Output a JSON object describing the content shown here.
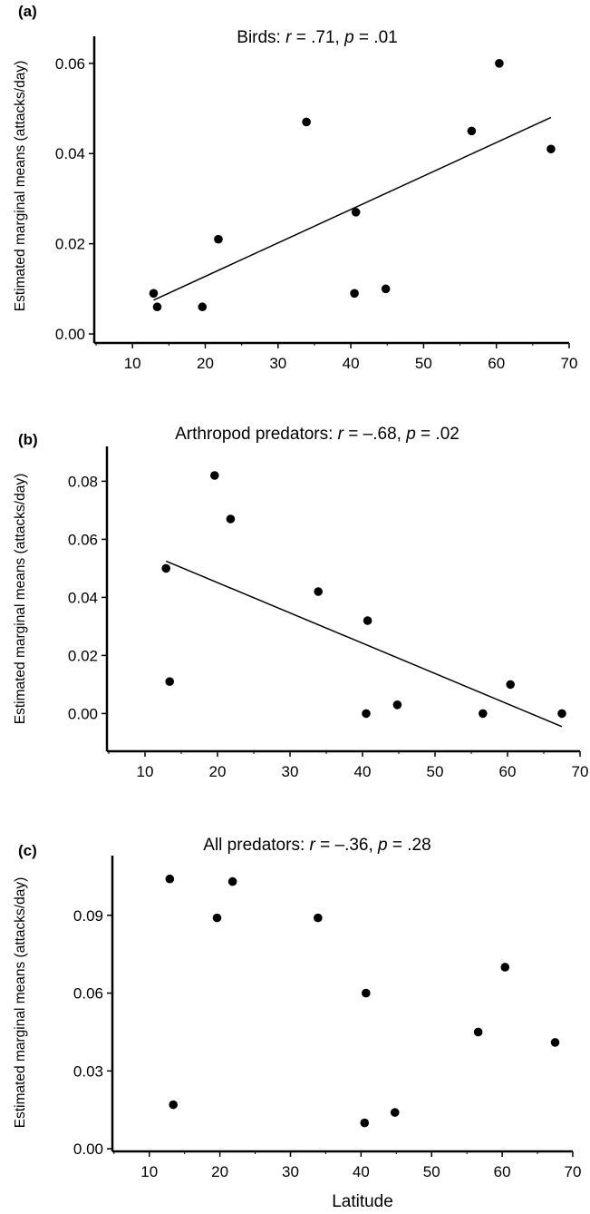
{
  "chart_data": [
    {
      "type": "scatter",
      "panel": "(a)",
      "title_prefix": "Birds: ",
      "stat_r": "r",
      "stat_r_value": " = .71, ",
      "stat_p": "p",
      "stat_p_value": " = .01",
      "ylabel": "Estimated marginal means (attacks/day)",
      "xlabel": "",
      "xlim": [
        4,
        70
      ],
      "ylim": [
        -0.002,
        0.066
      ],
      "xticks": [
        "10",
        "20",
        "30",
        "40",
        "50",
        "60",
        "70"
      ],
      "yticks": [
        "0.00",
        "0.02",
        "0.04",
        "0.06"
      ],
      "points": [
        {
          "x": 12.9,
          "y": 0.009
        },
        {
          "x": 13.4,
          "y": 0.006
        },
        {
          "x": 19.6,
          "y": 0.006
        },
        {
          "x": 21.8,
          "y": 0.021
        },
        {
          "x": 33.9,
          "y": 0.047
        },
        {
          "x": 40.5,
          "y": 0.009
        },
        {
          "x": 40.7,
          "y": 0.027
        },
        {
          "x": 44.8,
          "y": 0.01
        },
        {
          "x": 56.6,
          "y": 0.045
        },
        {
          "x": 60.4,
          "y": 0.06
        },
        {
          "x": 67.5,
          "y": 0.041
        }
      ],
      "fit": {
        "x1": 12.9,
        "y1": 0.0075,
        "x2": 67.5,
        "y2": 0.048
      }
    },
    {
      "type": "scatter",
      "panel": "(b)",
      "title_prefix": "Arthropod predators: ",
      "stat_r": "r",
      "stat_r_value": " = –.68, ",
      "stat_p": "p",
      "stat_p_value": " = .02",
      "ylabel": "Estimated marginal means (attacks/day)",
      "xlabel": "",
      "xlim": [
        4,
        70
      ],
      "ylim": [
        -0.013,
        0.092
      ],
      "xticks": [
        "10",
        "20",
        "30",
        "40",
        "50",
        "60",
        "70"
      ],
      "yticks": [
        "0.00",
        "0.02",
        "0.04",
        "0.06",
        "0.08"
      ],
      "points": [
        {
          "x": 12.9,
          "y": 0.05
        },
        {
          "x": 13.4,
          "y": 0.011
        },
        {
          "x": 19.6,
          "y": 0.082
        },
        {
          "x": 21.8,
          "y": 0.067
        },
        {
          "x": 33.9,
          "y": 0.042
        },
        {
          "x": 40.5,
          "y": 0.0
        },
        {
          "x": 40.7,
          "y": 0.032
        },
        {
          "x": 44.8,
          "y": 0.003
        },
        {
          "x": 56.6,
          "y": 0.0
        },
        {
          "x": 60.4,
          "y": 0.01
        },
        {
          "x": 67.5,
          "y": 0.0
        }
      ],
      "fit": {
        "x1": 12.9,
        "y1": 0.0525,
        "x2": 67.5,
        "y2": -0.0045
      }
    },
    {
      "type": "scatter",
      "panel": "(c)",
      "title_prefix": "All predators: ",
      "stat_r": "r",
      "stat_r_value": " = –.36, ",
      "stat_p": "p",
      "stat_p_value": " = .28",
      "ylabel": "Estimated marginal means (attacks/day)",
      "xlabel": "Latitude",
      "xlim": [
        4,
        70
      ],
      "ylim": [
        -0.001,
        0.113
      ],
      "xticks": [
        "10",
        "20",
        "30",
        "40",
        "50",
        "60",
        "70"
      ],
      "yticks": [
        "0.00",
        "0.03",
        "0.06",
        "0.09"
      ],
      "points": [
        {
          "x": 12.9,
          "y": 0.104
        },
        {
          "x": 13.4,
          "y": 0.017
        },
        {
          "x": 19.6,
          "y": 0.089
        },
        {
          "x": 21.8,
          "y": 0.103
        },
        {
          "x": 33.9,
          "y": 0.089
        },
        {
          "x": 40.5,
          "y": 0.01
        },
        {
          "x": 40.7,
          "y": 0.06
        },
        {
          "x": 44.8,
          "y": 0.014
        },
        {
          "x": 56.6,
          "y": 0.045
        },
        {
          "x": 60.4,
          "y": 0.07
        },
        {
          "x": 67.5,
          "y": 0.041
        }
      ]
    }
  ]
}
